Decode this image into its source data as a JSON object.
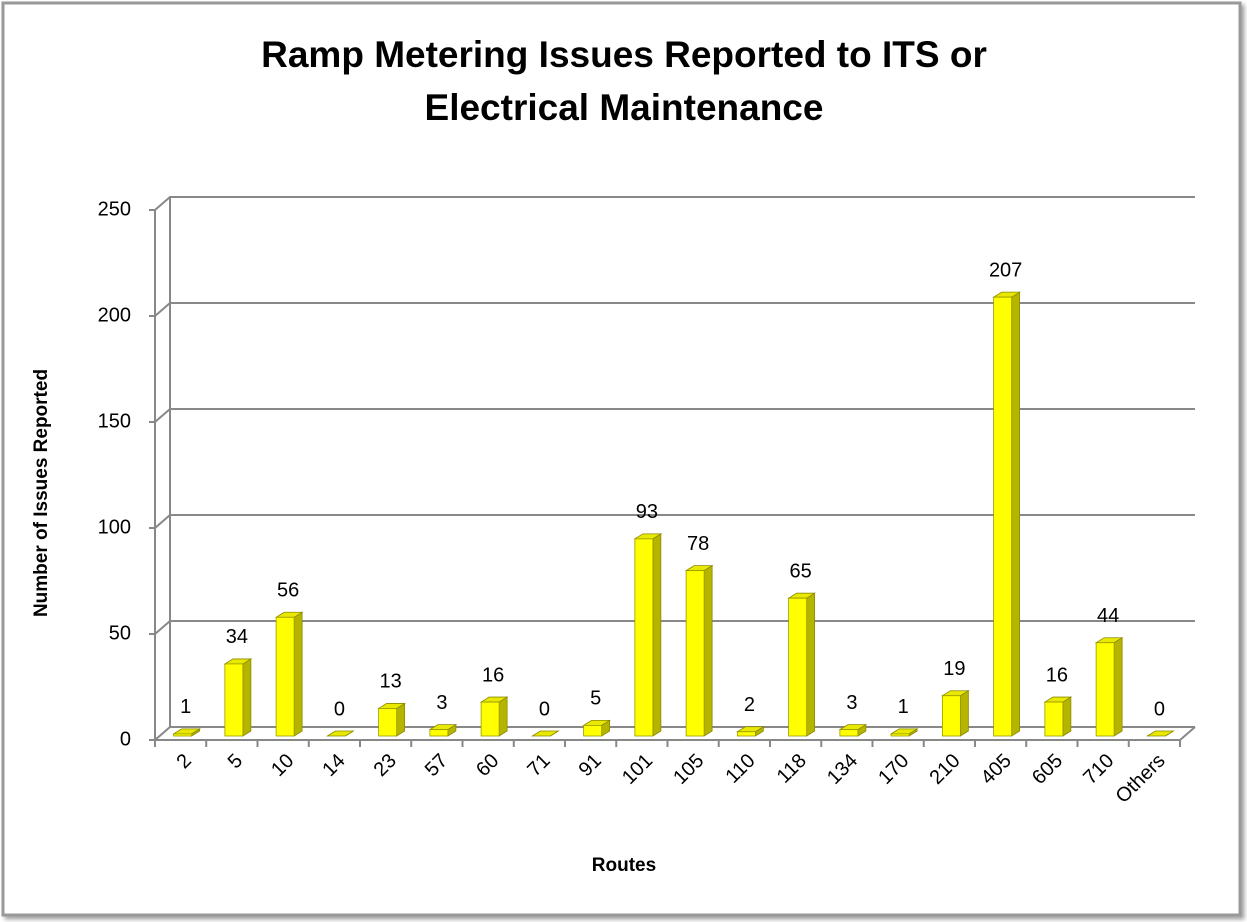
{
  "chart_data": {
    "type": "bar3d",
    "title": [
      "Ramp Metering Issues Reported to ITS or",
      "Electrical Maintenance"
    ],
    "x_label": "Routes",
    "y_label": "Number of Issues Reported",
    "categories": [
      "2",
      "5",
      "10",
      "14",
      "23",
      "57",
      "60",
      "71",
      "91",
      "101",
      "105",
      "110",
      "118",
      "134",
      "170",
      "210",
      "405",
      "605",
      "710",
      "Others"
    ],
    "values": [
      1,
      34,
      56,
      0,
      13,
      3,
      16,
      0,
      5,
      93,
      78,
      2,
      65,
      3,
      1,
      19,
      207,
      16,
      44,
      0
    ],
    "color": "#ffff00",
    "ylim": [
      0,
      250
    ],
    "yticks": [
      0,
      50,
      100,
      150,
      200,
      250
    ],
    "grid": true
  }
}
